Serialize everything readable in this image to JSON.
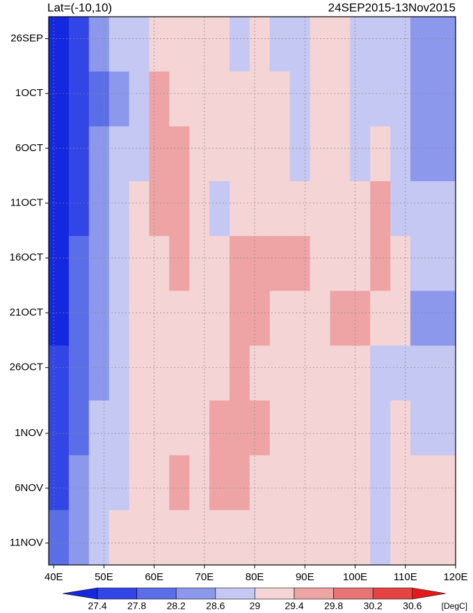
{
  "chart_data": {
    "type": "heatmap",
    "title": "Lat=(-10,10)",
    "subtitle": "24SEP2015-13Nov2015",
    "xlim": [
      39,
      120
    ],
    "ylim": [
      0,
      50
    ],
    "xticks": [
      {
        "value": 40,
        "label": "40E"
      },
      {
        "value": 50,
        "label": "50E"
      },
      {
        "value": 60,
        "label": "60E"
      },
      {
        "value": 70,
        "label": "70E"
      },
      {
        "value": 80,
        "label": "80E"
      },
      {
        "value": 90,
        "label": "90E"
      },
      {
        "value": 100,
        "label": "100E"
      },
      {
        "value": 110,
        "label": "110E"
      },
      {
        "value": 120,
        "label": "120E"
      }
    ],
    "yticks": [
      {
        "value": 2,
        "label": "26SEP"
      },
      {
        "value": 7,
        "label": "1OCT"
      },
      {
        "value": 12,
        "label": "6OCT"
      },
      {
        "value": 17,
        "label": "11OCT"
      },
      {
        "value": 22,
        "label": "16OCT"
      },
      {
        "value": 27,
        "label": "21OCT"
      },
      {
        "value": 32,
        "label": "26OCT"
      },
      {
        "value": 38,
        "label": "1NOV"
      },
      {
        "value": 43,
        "label": "6NOV"
      },
      {
        "value": 48,
        "label": "11NOV"
      }
    ],
    "grid": true,
    "xbins": [
      39,
      43,
      47,
      51,
      55,
      59,
      63,
      67,
      71,
      75,
      79,
      83,
      87,
      91,
      95,
      99,
      103,
      107,
      111,
      115,
      120
    ],
    "ybins": [
      0,
      5,
      10,
      15,
      20,
      25,
      30,
      35,
      40,
      45,
      50
    ],
    "values": [
      [
        27.0,
        27.6,
        28.2,
        28.7,
        28.9,
        29.1,
        29.3,
        29.1,
        29.0,
        28.9,
        29.0,
        28.9,
        28.9,
        29.0,
        29.0,
        28.9,
        28.8,
        28.8,
        28.4,
        28.5
      ],
      [
        27.0,
        27.5,
        28.0,
        28.5,
        28.8,
        29.5,
        29.3,
        29.1,
        29.0,
        29.1,
        29.0,
        29.1,
        28.9,
        29.1,
        29.0,
        28.8,
        28.9,
        28.7,
        28.5,
        28.4
      ],
      [
        27.1,
        27.6,
        28.2,
        28.6,
        28.9,
        29.7,
        29.5,
        29.2,
        29.1,
        29.0,
        29.1,
        29.0,
        28.9,
        29.1,
        29.0,
        28.8,
        29.2,
        28.8,
        28.5,
        28.4
      ],
      [
        27.1,
        27.7,
        28.3,
        28.7,
        29.0,
        29.6,
        29.5,
        29.2,
        28.9,
        29.2,
        29.2,
        29.2,
        29.1,
        29.3,
        29.2,
        29.0,
        29.4,
        28.9,
        28.6,
        28.6
      ],
      [
        27.3,
        27.8,
        28.3,
        28.6,
        29.0,
        29.3,
        29.6,
        29.3,
        29.2,
        29.6,
        29.5,
        29.4,
        29.4,
        29.3,
        29.2,
        29.1,
        29.5,
        29.0,
        28.7,
        28.7
      ],
      [
        27.3,
        27.9,
        28.4,
        28.8,
        29.1,
        29.2,
        29.3,
        29.2,
        29.3,
        29.7,
        29.4,
        29.3,
        29.2,
        29.3,
        29.6,
        29.5,
        29.2,
        29.0,
        28.5,
        28.5
      ],
      [
        27.5,
        28.0,
        28.5,
        28.8,
        29.0,
        29.2,
        29.3,
        29.2,
        29.2,
        29.5,
        29.3,
        29.2,
        29.2,
        29.1,
        29.2,
        29.2,
        28.8,
        28.7,
        28.7,
        28.6
      ],
      [
        27.6,
        28.1,
        28.6,
        28.8,
        29.0,
        29.2,
        29.3,
        29.3,
        29.6,
        29.7,
        29.4,
        29.3,
        29.2,
        29.2,
        29.2,
        29.1,
        28.9,
        29.1,
        28.9,
        28.8
      ],
      [
        27.7,
        28.3,
        28.7,
        28.9,
        29.1,
        29.2,
        29.4,
        29.3,
        29.5,
        29.5,
        29.3,
        29.2,
        29.2,
        29.3,
        29.2,
        29.0,
        28.6,
        29.1,
        29.0,
        29.1
      ],
      [
        27.8,
        28.4,
        28.8,
        29.0,
        29.1,
        29.2,
        29.2,
        29.1,
        29.2,
        29.2,
        29.2,
        29.1,
        29.0,
        29.1,
        29.2,
        29.2,
        28.7,
        29.2,
        29.1,
        29.2
      ]
    ],
    "colorbar": {
      "levels": [
        27.4,
        27.8,
        28.2,
        28.6,
        29,
        29.4,
        29.8,
        30.2,
        30.6
      ],
      "colors": [
        "#1428e0",
        "#3246e6",
        "#5a6ee8",
        "#8c98ec",
        "#c4c8f2",
        "#f4d4d4",
        "#eea4a4",
        "#e87474",
        "#e64444",
        "#e41a1a"
      ],
      "label": "[DegC]"
    }
  }
}
